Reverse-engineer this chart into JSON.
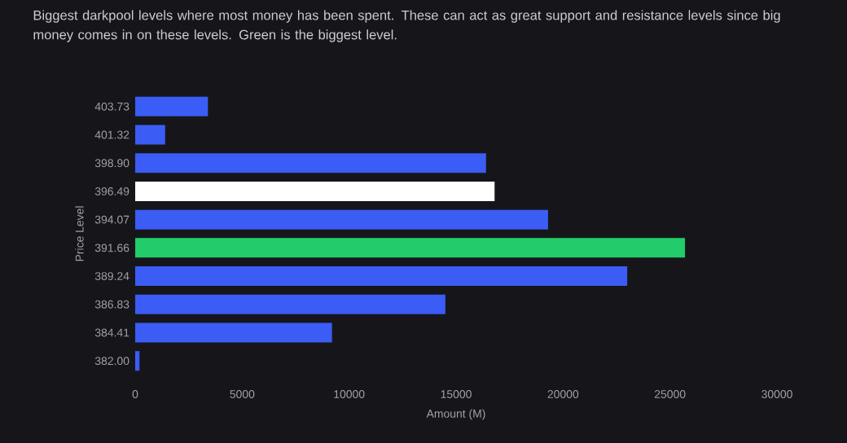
{
  "chart_data": {
    "type": "bar",
    "orientation": "horizontal",
    "title": "Biggest darkpool levels where most money has been spent. These can act as great support and resistance levels since big money comes in on these levels. Green is the biggest level.",
    "xlabel": "Amount (M)",
    "ylabel": "Price Level",
    "categories": [
      "403.73",
      "401.32",
      "398.90",
      "396.49",
      "394.07",
      "391.66",
      "389.24",
      "386.83",
      "384.41",
      "382.00"
    ],
    "values": [
      3400,
      1400,
      16400,
      16800,
      19300,
      25700,
      23000,
      14500,
      9200,
      200
    ],
    "colors": [
      "#3b5cf5",
      "#3b5cf5",
      "#3b5cf5",
      "#ffffff",
      "#3b5cf5",
      "#22cc6a",
      "#3b5cf5",
      "#3b5cf5",
      "#3b5cf5",
      "#3b5cf5"
    ],
    "xlim": [
      0,
      30000
    ],
    "xticks": [
      0,
      5000,
      10000,
      15000,
      20000,
      25000,
      30000
    ]
  }
}
